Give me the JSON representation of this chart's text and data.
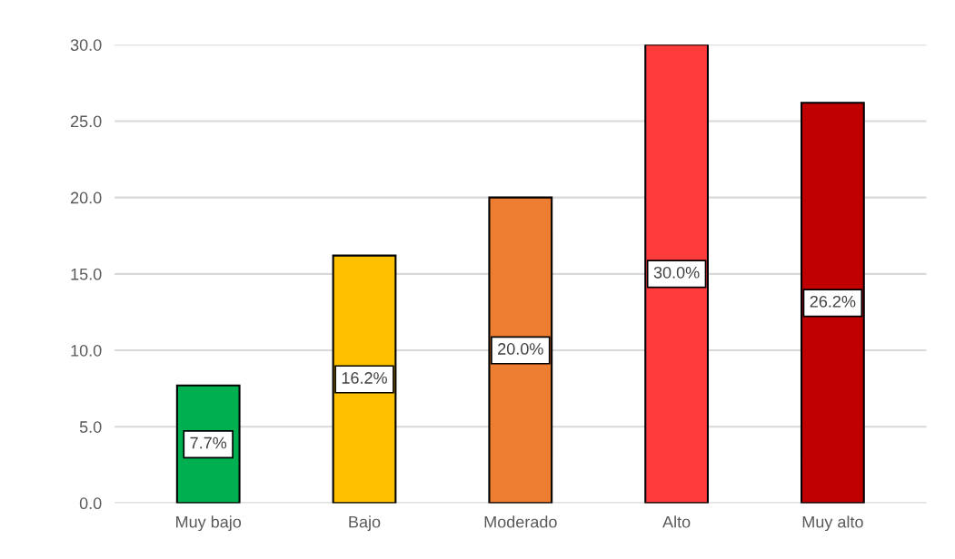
{
  "chart_data": {
    "type": "bar",
    "categories": [
      "Muy bajo",
      "Bajo",
      "Moderado",
      "Alto",
      "Muy alto"
    ],
    "values": [
      7.7,
      16.2,
      20.0,
      30.0,
      26.2
    ],
    "colors": [
      "#00b050",
      "#ffc000",
      "#ed7d31",
      "#ff3b3b",
      "#c00000"
    ],
    "value_labels": [
      "7.7%",
      "16.2%",
      "20.0%",
      "30.0%",
      "26.2%"
    ],
    "ylim": [
      0,
      30
    ],
    "yticks": [
      {
        "value": 0,
        "label": "0.0"
      },
      {
        "value": 5,
        "label": "5.0"
      },
      {
        "value": 10,
        "label": "10.0"
      },
      {
        "value": 15,
        "label": "15.0"
      },
      {
        "value": 20,
        "label": "20.0"
      },
      {
        "value": 25,
        "label": "25.0"
      },
      {
        "value": 30,
        "label": "30.0"
      }
    ],
    "grid": "y",
    "legend": false
  }
}
